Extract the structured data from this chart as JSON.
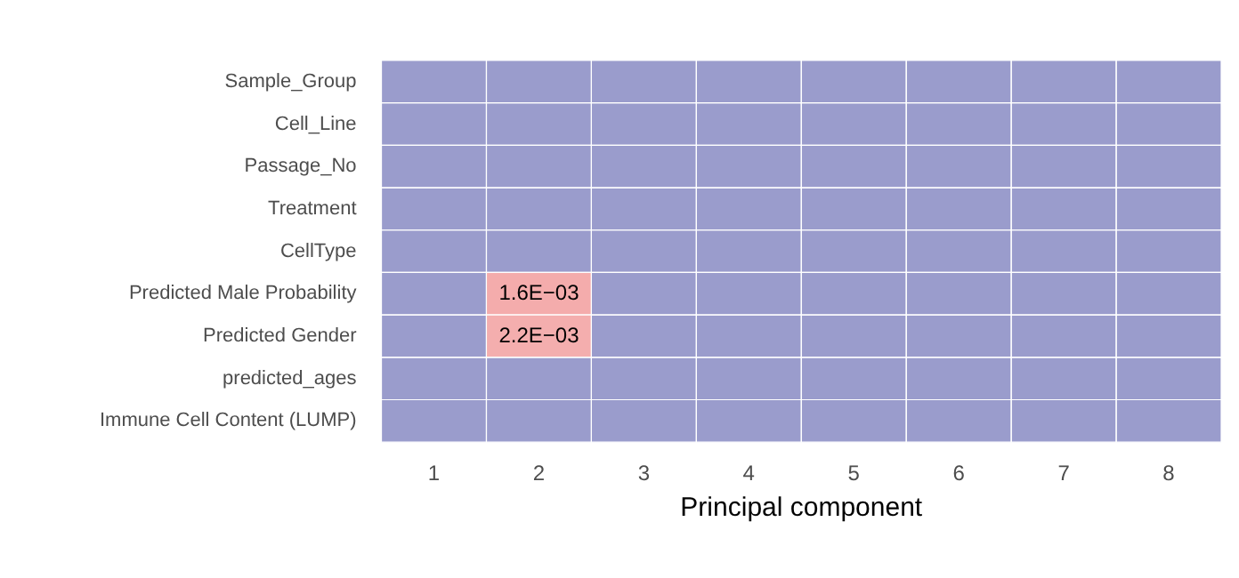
{
  "chart_data": {
    "type": "heatmap",
    "xlabel": "Principal component",
    "categories": [
      "1",
      "2",
      "3",
      "4",
      "5",
      "6",
      "7",
      "8"
    ],
    "y_categories": [
      "Sample_Group",
      "Cell_Line",
      "Passage_No",
      "Treatment",
      "CellType",
      "Predicted Male Probability",
      "Predicted Gender",
      "predicted_ages",
      "Immune Cell Content (LUMP)"
    ],
    "cells": [
      [
        null,
        null,
        null,
        null,
        null,
        null,
        null,
        null
      ],
      [
        null,
        null,
        null,
        null,
        null,
        null,
        null,
        null
      ],
      [
        null,
        null,
        null,
        null,
        null,
        null,
        null,
        null
      ],
      [
        null,
        null,
        null,
        null,
        null,
        null,
        null,
        null
      ],
      [
        null,
        null,
        null,
        null,
        null,
        null,
        null,
        null
      ],
      [
        null,
        0.0016,
        null,
        null,
        null,
        null,
        null,
        null
      ],
      [
        null,
        0.0022,
        null,
        null,
        null,
        null,
        null,
        null
      ],
      [
        null,
        null,
        null,
        null,
        null,
        null,
        null,
        null
      ],
      [
        null,
        null,
        null,
        null,
        null,
        null,
        null,
        null
      ]
    ],
    "cell_labels": [
      [
        null,
        null,
        null,
        null,
        null,
        null,
        null,
        null
      ],
      [
        null,
        null,
        null,
        null,
        null,
        null,
        null,
        null
      ],
      [
        null,
        null,
        null,
        null,
        null,
        null,
        null,
        null
      ],
      [
        null,
        null,
        null,
        null,
        null,
        null,
        null,
        null
      ],
      [
        null,
        null,
        null,
        null,
        null,
        null,
        null,
        null
      ],
      [
        null,
        "1.6E−03",
        null,
        null,
        null,
        null,
        null,
        null
      ],
      [
        null,
        "2.2E−03",
        null,
        null,
        null,
        null,
        null,
        null
      ],
      [
        null,
        null,
        null,
        null,
        null,
        null,
        null,
        null
      ],
      [
        null,
        null,
        null,
        null,
        null,
        null,
        null,
        null
      ]
    ]
  }
}
